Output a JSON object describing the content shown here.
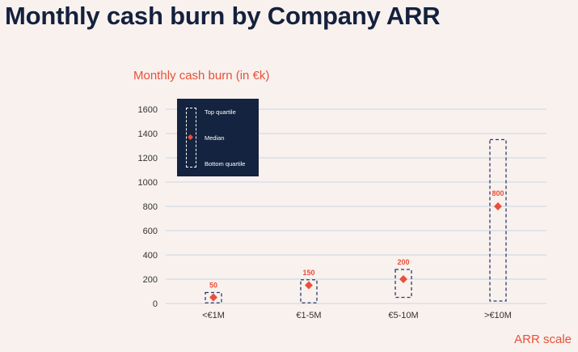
{
  "title": "Monthly cash burn by Company ARR",
  "colors": {
    "background": "#f8f1ee",
    "title": "#14213d",
    "accent": "#e8503a",
    "box_stroke": "#2b3a67",
    "grid": "#c9d6e4",
    "legend_bg": "#14233f"
  },
  "legend": {
    "top": "Top quartile",
    "median": "Median",
    "bottom": "Bottom quartile"
  },
  "chart_data": {
    "type": "box",
    "title": "Monthly cash burn by Company ARR",
    "ylabel": "Monthly cash burn (in €k)",
    "xlabel": "ARR scale",
    "ylim": [
      0,
      1600
    ],
    "yticks": [
      0,
      200,
      400,
      600,
      800,
      1000,
      1200,
      1400,
      1600
    ],
    "grid": true,
    "legend_position": "top-left",
    "categories": [
      "<€1M",
      "€1-5M",
      "€5-10M",
      ">€10M"
    ],
    "bottom_quartile": [
      5,
      5,
      50,
      20
    ],
    "top_quartile": [
      90,
      195,
      280,
      1350
    ],
    "median": [
      50,
      150,
      200,
      800
    ],
    "median_labels": [
      "50",
      "150",
      "200",
      "800"
    ]
  }
}
